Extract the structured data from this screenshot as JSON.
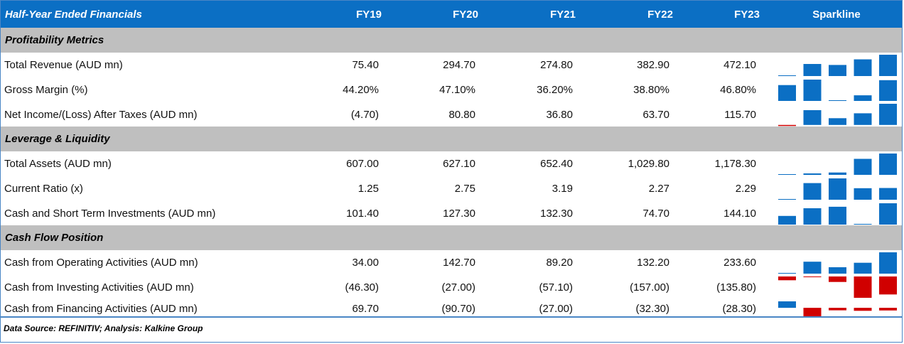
{
  "header": {
    "title": "Half-Year Ended Financials",
    "years": [
      "FY19",
      "FY20",
      "FY21",
      "FY22",
      "FY23"
    ],
    "sparkline_label": "Sparkline"
  },
  "colors": {
    "header_bg": "#0b6fc4",
    "section_bg": "#bfbfbf",
    "positive_bar": "#0b6fc4",
    "negative_bar": "#d00000",
    "border": "#4a86c5"
  },
  "chart_data": {
    "type": "table",
    "columns": [
      "Half-Year Ended Financials",
      "FY19",
      "FY20",
      "FY21",
      "FY22",
      "FY23",
      "Sparkline"
    ],
    "sections": [
      {
        "name": "Profitability Metrics",
        "rows": [
          {
            "label": "Total Revenue (AUD mn)",
            "display": [
              "75.40",
              "294.70",
              "274.80",
              "382.90",
              "472.10"
            ],
            "values": [
              75.4,
              294.7,
              274.8,
              382.9,
              472.1
            ]
          },
          {
            "label": "Gross Margin (%)",
            "display": [
              "44.20%",
              "47.10%",
              "36.20%",
              "38.80%",
              "46.80%"
            ],
            "values": [
              44.2,
              47.1,
              36.2,
              38.8,
              46.8
            ]
          },
          {
            "label": "Net Income/(Loss) After Taxes (AUD mn)",
            "display": [
              "(4.70)",
              "80.80",
              "36.80",
              "63.70",
              "115.70"
            ],
            "values": [
              -4.7,
              80.8,
              36.8,
              63.7,
              115.7
            ]
          }
        ]
      },
      {
        "name": "Leverage & Liquidity",
        "rows": [
          {
            "label": "Total Assets (AUD mn)",
            "display": [
              "607.00",
              "627.10",
              "652.40",
              "1,029.80",
              "1,178.30"
            ],
            "values": [
              607.0,
              627.1,
              652.4,
              1029.8,
              1178.3
            ]
          },
          {
            "label": "Current Ratio (x)",
            "display": [
              "1.25",
              "2.75",
              "3.19",
              "2.27",
              "2.29"
            ],
            "values": [
              1.25,
              2.75,
              3.19,
              2.27,
              2.29
            ]
          },
          {
            "label": "Cash and Short Term Investments (AUD mn)",
            "display": [
              "101.40",
              "127.30",
              "132.30",
              "74.70",
              "144.10"
            ],
            "values": [
              101.4,
              127.3,
              132.3,
              74.7,
              144.1
            ]
          }
        ]
      },
      {
        "name": "Cash Flow Position",
        "rows": [
          {
            "label": "Cash from Operating Activities (AUD mn)",
            "display": [
              "34.00",
              "142.70",
              "89.20",
              "132.20",
              "233.60"
            ],
            "values": [
              34.0,
              142.7,
              89.2,
              132.2,
              233.6
            ]
          },
          {
            "label": "Cash from Investing Activities (AUD mn)",
            "display": [
              "(46.30)",
              "(27.00)",
              "(57.10)",
              "(157.00)",
              "(135.80)"
            ],
            "values": [
              -46.3,
              -27.0,
              -57.1,
              -157.0,
              -135.8
            ]
          },
          {
            "label": "Cash from Financing Activities (AUD mn)",
            "display": [
              "69.70",
              "(90.70)",
              "(27.00)",
              "(32.30)",
              "(28.30)"
            ],
            "values": [
              69.7,
              -90.7,
              -27.0,
              -32.3,
              -28.3
            ]
          }
        ]
      }
    ]
  },
  "footer": {
    "source": "Data Source: REFINITIV; Analysis: Kalkine Group"
  }
}
